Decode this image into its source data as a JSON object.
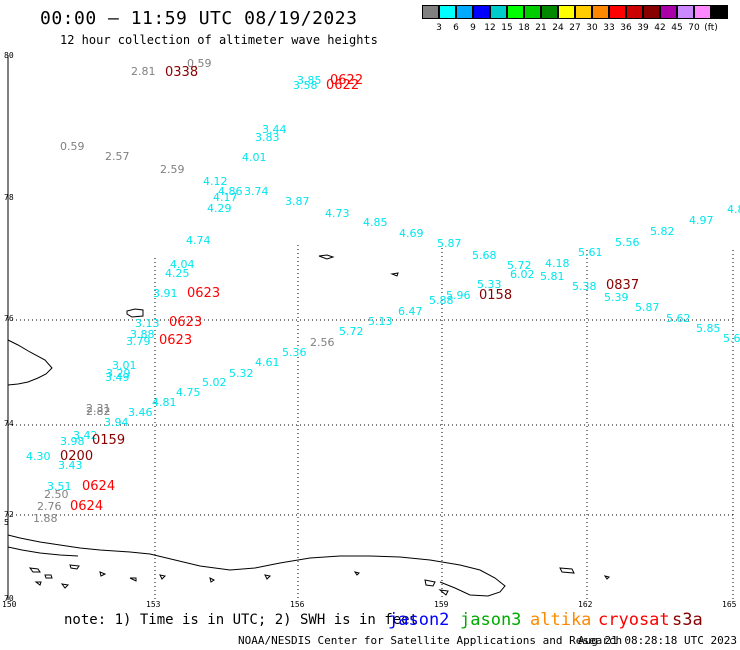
{
  "title": "00:00 – 11:59 UTC 08/19/2023",
  "subtitle": "12 hour collection of altimeter wave heights",
  "legend": {
    "swatches": [
      "#808080",
      "#00ffff",
      "#00aaff",
      "#0000ff",
      "#00cccc",
      "#00ff00",
      "#00cc00",
      "#008800",
      "#ffff00",
      "#ffcc00",
      "#ff8800",
      "#ff0000",
      "#cc0000",
      "#880000",
      "#aa00aa",
      "#cc88ff",
      "#ff88ff",
      "#000000"
    ],
    "labels": [
      "3",
      "6",
      "9",
      "12",
      "15",
      "18",
      "21",
      "24",
      "27",
      "30",
      "33",
      "36",
      "39",
      "42",
      "45",
      "70",
      "(ft)"
    ]
  },
  "axes": {
    "lat_labels": [
      "80",
      "78",
      "76",
      "74",
      "72",
      "70"
    ],
    "lon_labels": [
      "150",
      "153",
      "156",
      "159",
      "162",
      "165"
    ],
    "side_mark": "5"
  },
  "colors": {
    "swh_low": "#808080",
    "swh_cyan": "#00e5ee",
    "time_red": "#ff0000",
    "time_dark": "#880000"
  },
  "swh_values": [
    {
      "t": "2.81",
      "c": "gray"
    },
    {
      "t": "0.59",
      "c": "gray"
    },
    {
      "t": "3.85",
      "c": "cyan"
    },
    {
      "t": "3.58",
      "c": "cyan"
    },
    {
      "t": "3.44",
      "c": "cyan"
    },
    {
      "t": "3.83",
      "c": "cyan"
    },
    {
      "t": "0.59",
      "c": "gray"
    },
    {
      "t": "2.57",
      "c": "gray"
    },
    {
      "t": "4.01",
      "c": "cyan"
    },
    {
      "t": "2.59",
      "c": "gray"
    },
    {
      "t": "4.12",
      "c": "cyan"
    },
    {
      "t": "4.86",
      "c": "cyan"
    },
    {
      "t": "3.74",
      "c": "cyan"
    },
    {
      "t": "4.17",
      "c": "cyan"
    },
    {
      "t": "4.29",
      "c": "cyan"
    },
    {
      "t": "3.87",
      "c": "cyan"
    },
    {
      "t": "4.73",
      "c": "cyan"
    },
    {
      "t": "4.85",
      "c": "cyan"
    },
    {
      "t": "4.69",
      "c": "cyan"
    },
    {
      "t": "5.87",
      "c": "cyan"
    },
    {
      "t": "5.68",
      "c": "cyan"
    },
    {
      "t": "5.72",
      "c": "cyan"
    },
    {
      "t": "4.18",
      "c": "cyan"
    },
    {
      "t": "5.61",
      "c": "cyan"
    },
    {
      "t": "5.56",
      "c": "cyan"
    },
    {
      "t": "5.82",
      "c": "cyan"
    },
    {
      "t": "4.97",
      "c": "cyan"
    },
    {
      "t": "4.8",
      "c": "cyan"
    },
    {
      "t": "4.74",
      "c": "cyan"
    },
    {
      "t": "4.04",
      "c": "cyan"
    },
    {
      "t": "4.25",
      "c": "cyan"
    },
    {
      "t": "6.02",
      "c": "cyan"
    },
    {
      "t": "5.81",
      "c": "cyan"
    },
    {
      "t": "5.33",
      "c": "cyan"
    },
    {
      "t": "5.38",
      "c": "cyan"
    },
    {
      "t": "5.39",
      "c": "cyan"
    },
    {
      "t": "3.91",
      "c": "cyan"
    },
    {
      "t": "5.96",
      "c": "cyan"
    },
    {
      "t": "5.88",
      "c": "cyan"
    },
    {
      "t": "6.47",
      "c": "cyan"
    },
    {
      "t": "5.87",
      "c": "cyan"
    },
    {
      "t": "5.62",
      "c": "cyan"
    },
    {
      "t": "5.85",
      "c": "cyan"
    },
    {
      "t": "5.6",
      "c": "cyan"
    },
    {
      "t": "3.13",
      "c": "cyan"
    },
    {
      "t": "5.13",
      "c": "cyan"
    },
    {
      "t": "3.88",
      "c": "cyan"
    },
    {
      "t": "5.72",
      "c": "cyan"
    },
    {
      "t": "3.79",
      "c": "cyan"
    },
    {
      "t": "2.56",
      "c": "gray"
    },
    {
      "t": "5.36",
      "c": "cyan"
    },
    {
      "t": "3.01",
      "c": "cyan"
    },
    {
      "t": "4.61",
      "c": "cyan"
    },
    {
      "t": "3.29",
      "c": "cyan"
    },
    {
      "t": "5.32",
      "c": "cyan"
    },
    {
      "t": "3.49",
      "c": "cyan"
    },
    {
      "t": "5.02",
      "c": "cyan"
    },
    {
      "t": "4.75",
      "c": "cyan"
    },
    {
      "t": "4.81",
      "c": "cyan"
    },
    {
      "t": "2.31",
      "c": "gray"
    },
    {
      "t": "2.82",
      "c": "gray"
    },
    {
      "t": "3.46",
      "c": "cyan"
    },
    {
      "t": "3.94",
      "c": "cyan"
    },
    {
      "t": "3.42",
      "c": "cyan"
    },
    {
      "t": "3.98",
      "c": "cyan"
    },
    {
      "t": "4.30",
      "c": "cyan"
    },
    {
      "t": "3.43",
      "c": "cyan"
    },
    {
      "t": "3.51",
      "c": "cyan"
    },
    {
      "t": "2.50",
      "c": "gray"
    },
    {
      "t": "2.76",
      "c": "gray"
    },
    {
      "t": "1.88",
      "c": "gray"
    }
  ],
  "times": [
    {
      "t": "0338",
      "c": "dark"
    },
    {
      "t": "0622",
      "c": "red"
    },
    {
      "t": "0622",
      "c": "red"
    },
    {
      "t": "0623",
      "c": "red"
    },
    {
      "t": "0837",
      "c": "dark"
    },
    {
      "t": "0158",
      "c": "dark"
    },
    {
      "t": "0623",
      "c": "red"
    },
    {
      "t": "0623",
      "c": "red"
    },
    {
      "t": "0159",
      "c": "dark"
    },
    {
      "t": "0200",
      "c": "dark"
    },
    {
      "t": "0624",
      "c": "red"
    },
    {
      "t": "0624",
      "c": "red"
    }
  ],
  "footer": {
    "note": "note: 1) Time is in UTC; 2) SWH is in feet",
    "satellites": [
      {
        "name": "jason2",
        "color": "#0000ff"
      },
      {
        "name": "jason3",
        "color": "#00aa00"
      },
      {
        "name": "altika",
        "color": "#ff8800"
      },
      {
        "name": "cryosat",
        "color": "#ff0000"
      },
      {
        "name": "s3a",
        "color": "#880000"
      }
    ],
    "credit": "NOAA/NESDIS Center for Satellite Applications and Research",
    "timestamp": "Aug 21 08:28:18 UTC 2023"
  }
}
